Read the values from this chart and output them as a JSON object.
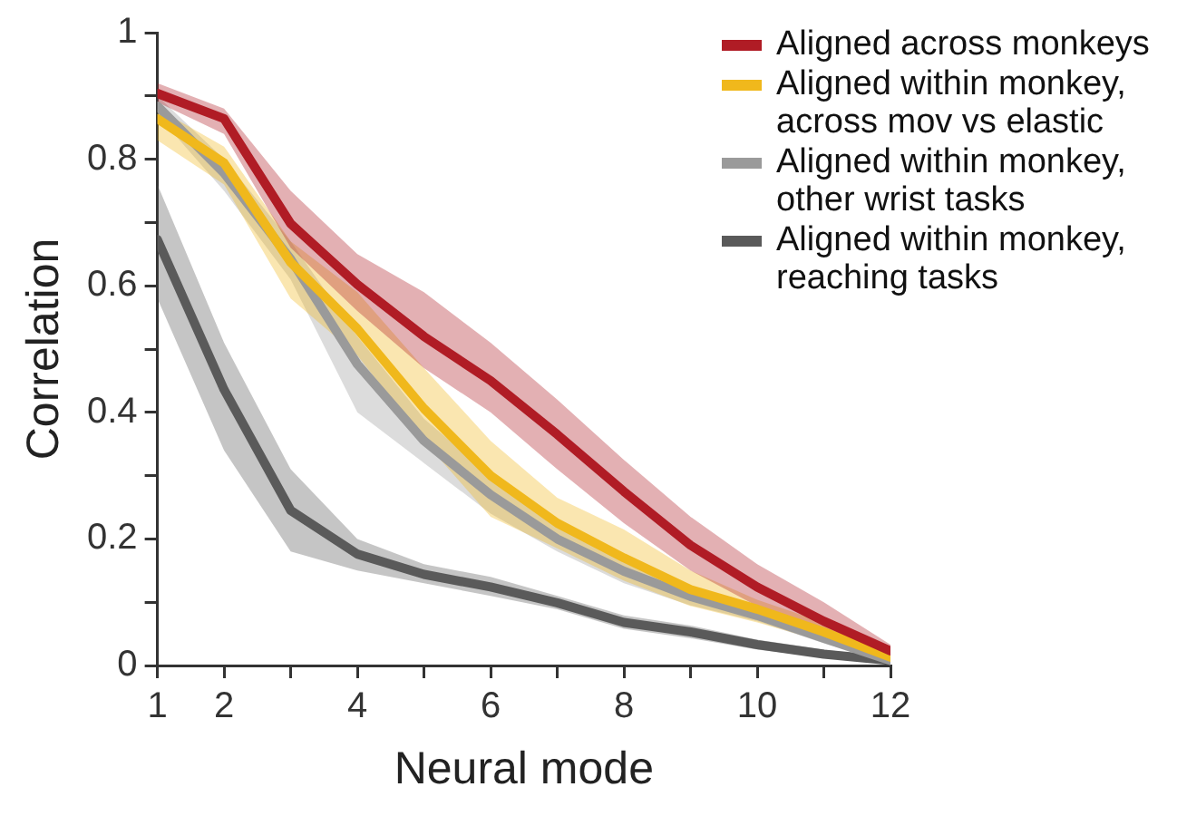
{
  "chart_data": {
    "type": "line",
    "xlabel": "Neural mode",
    "ylabel": "Correlation",
    "x": [
      1,
      2,
      3,
      4,
      5,
      6,
      7,
      8,
      9,
      10,
      11,
      12
    ],
    "xlim": [
      1,
      12
    ],
    "xticks": [
      1,
      2,
      {
        "value": 3,
        "label": null
      },
      4,
      {
        "value": 5,
        "label": null
      },
      6,
      {
        "value": 7,
        "label": null
      },
      8,
      {
        "value": 9,
        "label": null
      },
      10,
      {
        "value": 11,
        "label": null
      },
      12
    ],
    "ylim": [
      0,
      1
    ],
    "yticks": [
      0,
      {
        "value": 0.1,
        "label": null
      },
      0.2,
      {
        "value": 0.3,
        "label": null
      },
      0.4,
      {
        "value": 0.5,
        "label": null
      },
      0.6,
      {
        "value": 0.7,
        "label": null
      },
      0.8,
      {
        "value": 0.9,
        "label": null
      },
      1
    ],
    "grid": false,
    "legend": "top right",
    "marker": "none",
    "line_style": "solid",
    "series": [
      {
        "name": "Aligned across monkeys",
        "color": "#b01c25",
        "values": [
          0.904,
          0.864,
          0.698,
          0.602,
          0.52,
          0.45,
          0.365,
          0.275,
          0.19,
          0.124,
          0.07,
          0.023
        ],
        "lower": [
          0.89,
          0.84,
          0.66,
          0.56,
          0.47,
          0.4,
          0.31,
          0.225,
          0.15,
          0.094,
          0.053,
          0.013
        ],
        "upper": [
          0.92,
          0.88,
          0.75,
          0.65,
          0.59,
          0.51,
          0.42,
          0.325,
          0.235,
          0.16,
          0.1,
          0.033
        ]
      },
      {
        "name": "Aligned within monkey, across mov vs elastic",
        "color": "#f0b81c",
        "values": [
          0.864,
          0.794,
          0.637,
          0.532,
          0.406,
          0.3,
          0.225,
          0.17,
          0.12,
          0.089,
          0.053,
          0.013
        ],
        "lower": [
          0.83,
          0.76,
          0.58,
          0.49,
          0.355,
          0.235,
          0.185,
          0.134,
          0.094,
          0.068,
          0.038,
          0.008
        ],
        "upper": [
          0.88,
          0.82,
          0.67,
          0.59,
          0.47,
          0.355,
          0.265,
          0.215,
          0.15,
          0.104,
          0.068,
          0.023
        ]
      },
      {
        "name": "Aligned within monkey, other wrist tasks",
        "color": "#9a9a9a",
        "values": [
          0.884,
          0.778,
          0.642,
          0.476,
          0.355,
          0.27,
          0.2,
          0.149,
          0.109,
          0.079,
          0.043,
          0.008
        ],
        "lower": [
          0.87,
          0.75,
          0.61,
          0.4,
          0.32,
          0.24,
          0.18,
          0.13,
          0.095,
          0.07,
          0.035,
          0.005
        ],
        "upper": [
          0.9,
          0.8,
          0.67,
          0.52,
          0.39,
          0.3,
          0.22,
          0.165,
          0.12,
          0.09,
          0.05,
          0.015
        ]
      },
      {
        "name": "Aligned within monkey, reaching tasks",
        "color": "#5a5a5a",
        "values": [
          0.673,
          0.436,
          0.245,
          0.176,
          0.144,
          0.124,
          0.099,
          0.068,
          0.053,
          0.033,
          0.018,
          0.008
        ],
        "lower": [
          0.58,
          0.34,
          0.18,
          0.15,
          0.13,
          0.11,
          0.089,
          0.058,
          0.043,
          0.025,
          0.013,
          0.003
        ],
        "upper": [
          0.76,
          0.51,
          0.31,
          0.2,
          0.16,
          0.14,
          0.11,
          0.079,
          0.063,
          0.041,
          0.025,
          0.013
        ]
      }
    ]
  }
}
